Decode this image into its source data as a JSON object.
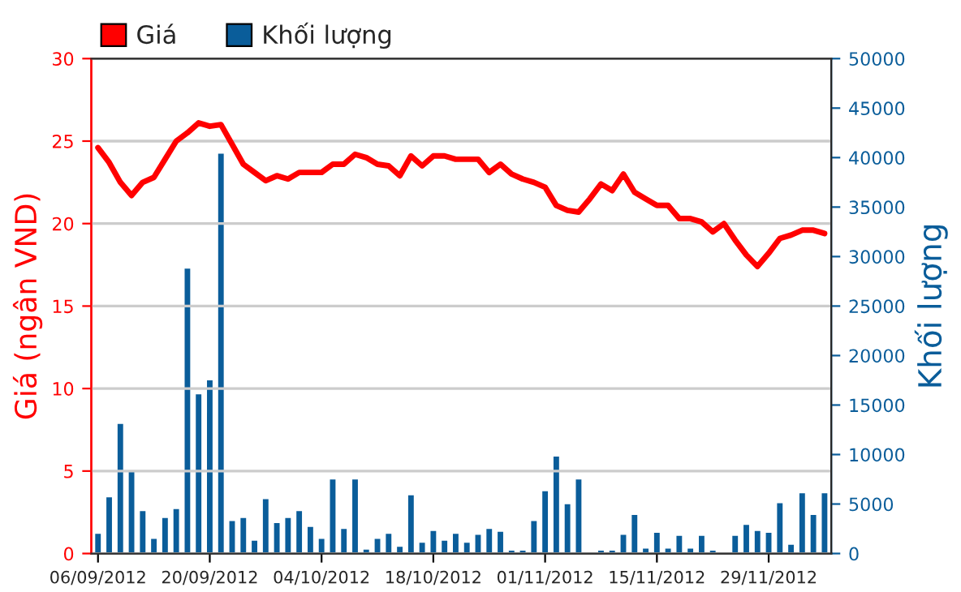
{
  "chart_data": {
    "type": "bar",
    "categories": [
      "06/09/2012",
      null,
      null,
      null,
      null,
      null,
      null,
      null,
      null,
      null,
      "20/09/2012",
      null,
      null,
      null,
      null,
      null,
      null,
      null,
      null,
      null,
      "04/10/2012",
      null,
      null,
      null,
      null,
      null,
      null,
      null,
      null,
      null,
      "18/10/2012",
      null,
      null,
      null,
      null,
      null,
      null,
      null,
      null,
      null,
      "01/11/2012",
      null,
      null,
      null,
      null,
      null,
      null,
      null,
      null,
      null,
      "15/11/2012",
      null,
      null,
      null,
      null,
      null,
      null,
      null,
      null,
      null,
      "29/11/2012",
      null,
      null,
      null,
      null,
      null
    ],
    "series": [
      {
        "name": "Giá",
        "type": "line",
        "color": "#ff0000",
        "values": [
          24.6,
          23.7,
          22.5,
          21.7,
          22.5,
          22.8,
          23.9,
          25.0,
          25.5,
          26.1,
          25.9,
          26.0,
          24.8,
          23.6,
          23.1,
          22.6,
          22.9,
          22.7,
          23.1,
          23.1,
          23.1,
          23.6,
          23.6,
          24.2,
          24.0,
          23.6,
          23.5,
          22.9,
          24.1,
          23.5,
          24.1,
          24.1,
          23.9,
          23.9,
          23.9,
          23.1,
          23.6,
          23.0,
          22.7,
          22.5,
          22.2,
          21.1,
          20.8,
          20.7,
          21.5,
          22.4,
          22.0,
          23.0,
          21.9,
          21.5,
          21.1,
          21.1,
          20.3,
          20.3,
          20.1,
          19.5,
          20.0,
          19.0,
          18.1,
          17.4,
          18.2,
          19.1,
          19.3,
          19.6,
          19.6,
          19.4
        ]
      },
      {
        "name": "Khối lượng",
        "axis": "y2",
        "color": "#0a5d9a",
        "values": [
          2100,
          5800,
          13200,
          8400,
          4400,
          1600,
          3700,
          4600,
          28900,
          16200,
          17600,
          40500,
          3400,
          3700,
          1400,
          5600,
          3200,
          3700,
          4400,
          2800,
          1600,
          7600,
          2600,
          7600,
          500,
          1600,
          2100,
          800,
          6000,
          1200,
          2400,
          1400,
          2100,
          1200,
          2000,
          2600,
          2300,
          400,
          400,
          3400,
          6400,
          9900,
          5100,
          7600,
          null,
          400,
          400,
          2000,
          4000,
          600,
          2200,
          600,
          1900,
          600,
          1900,
          400,
          null,
          1900,
          3000,
          2400,
          2200,
          5200,
          1000,
          6200,
          4000,
          6200
        ]
      }
    ],
    "ylabel": "Giá (ngân VND)",
    "y2label": "Khối lượng",
    "ylim": [
      0,
      30
    ],
    "yticks": [
      0,
      5,
      10,
      15,
      20,
      25,
      30
    ],
    "y2lim": [
      0,
      50000
    ],
    "y2ticks": [
      0,
      5000,
      10000,
      15000,
      20000,
      25000,
      30000,
      35000,
      40000,
      45000,
      50000
    ],
    "grid": "y",
    "legend": "top left"
  }
}
